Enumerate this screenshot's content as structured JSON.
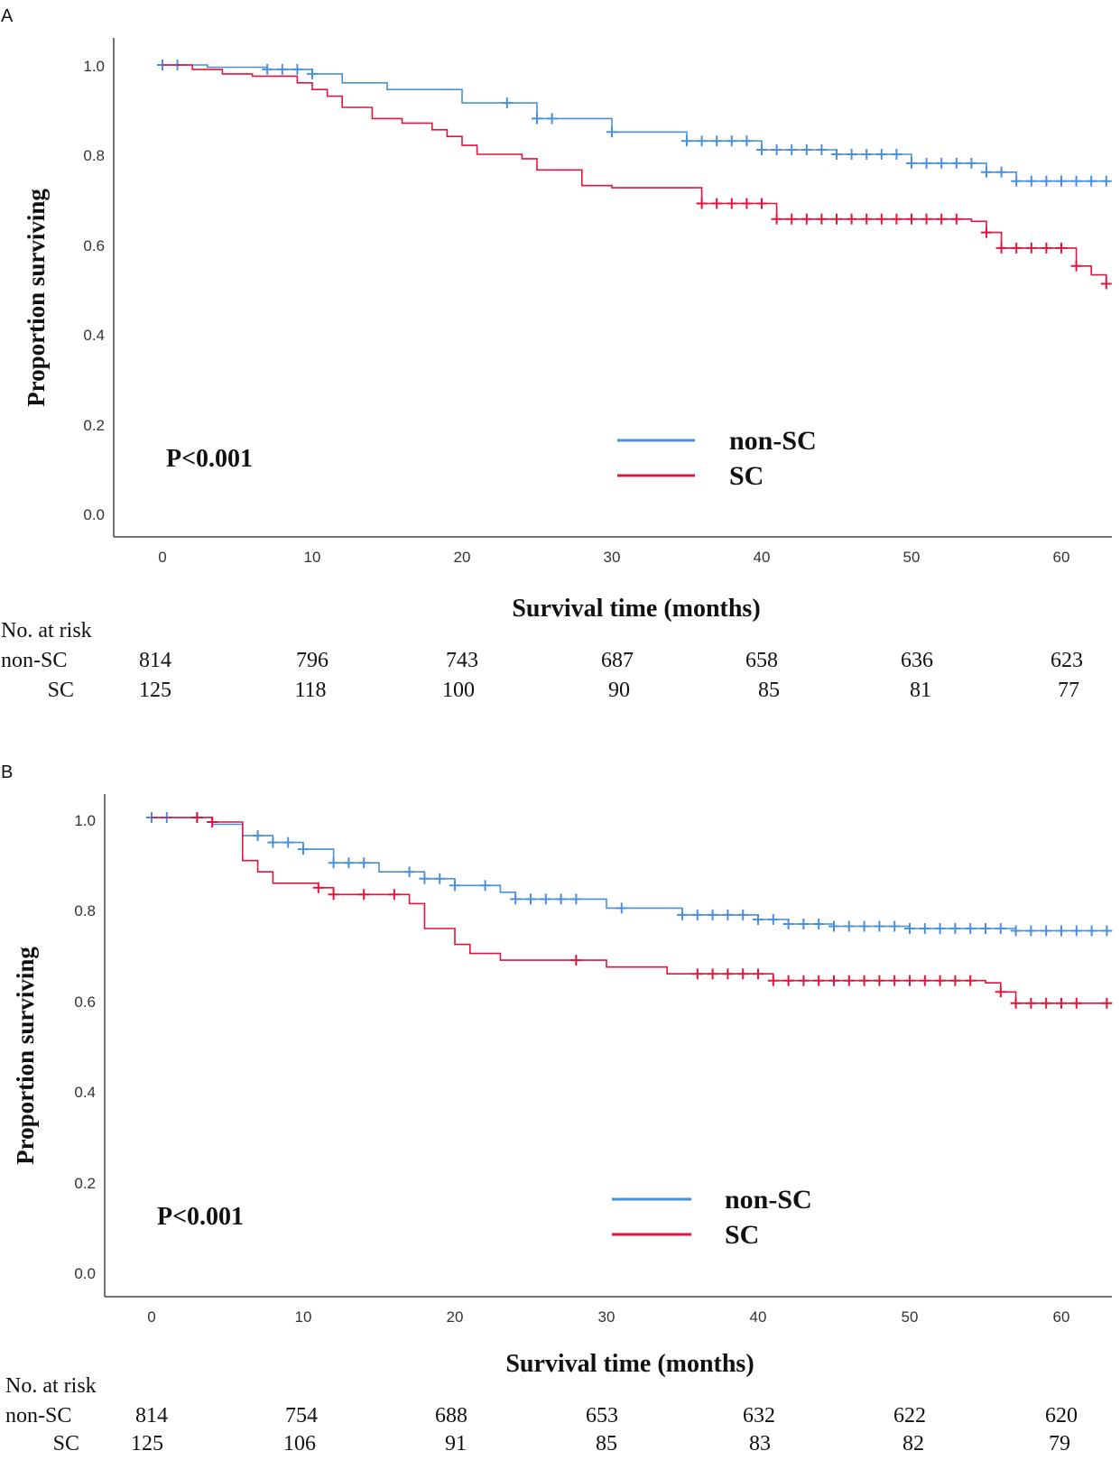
{
  "chart_data": [
    {
      "panel_label": "A",
      "type": "line",
      "ylabel": "Proportion surviving",
      "xlabel": "Survival time (months)",
      "xlim": [
        0,
        63
      ],
      "ylim": [
        0,
        1.0
      ],
      "x_ticks": [
        "0",
        "10",
        "20",
        "30",
        "40",
        "50",
        "60"
      ],
      "y_ticks": [
        "0.0",
        "0.2",
        "0.4",
        "0.6",
        "0.8",
        "1.0"
      ],
      "annotation": "P<0.001",
      "legend": [
        "non-SC",
        "SC"
      ],
      "colors": {
        "non-SC": "#4a8fdc",
        "SC": "#e0143c"
      },
      "series": [
        {
          "name": "non-SC",
          "color": "#4a8fdc",
          "x": [
            0,
            3,
            7,
            10,
            12,
            15,
            20,
            25,
            30,
            35,
            40,
            45,
            50,
            55,
            57,
            63
          ],
          "y": [
            1.0,
            0.995,
            0.99,
            0.98,
            0.96,
            0.945,
            0.915,
            0.88,
            0.85,
            0.83,
            0.81,
            0.8,
            0.78,
            0.76,
            0.74,
            0.74
          ],
          "censored_x": [
            0,
            1,
            7,
            8,
            9,
            10,
            23,
            25,
            26,
            30,
            35,
            36,
            37,
            38,
            39,
            40,
            41,
            42,
            43,
            44,
            45,
            46,
            47,
            48,
            49,
            50,
            51,
            52,
            53,
            54,
            55,
            56,
            57,
            58,
            59,
            60,
            61,
            62,
            63
          ]
        },
        {
          "name": "SC",
          "color": "#e0143c",
          "x": [
            0,
            2,
            4,
            6,
            9,
            10,
            11,
            12,
            14,
            16,
            18,
            19,
            20,
            21,
            24,
            25,
            28,
            30,
            35,
            36,
            41,
            54,
            55,
            56,
            61,
            62,
            63
          ],
          "y": [
            1.0,
            0.99,
            0.98,
            0.975,
            0.96,
            0.945,
            0.93,
            0.905,
            0.88,
            0.87,
            0.855,
            0.84,
            0.82,
            0.8,
            0.79,
            0.765,
            0.73,
            0.725,
            0.725,
            0.69,
            0.655,
            0.65,
            0.625,
            0.59,
            0.55,
            0.53,
            0.51
          ],
          "censored_x": [
            36,
            37,
            38,
            39,
            40,
            41,
            42,
            43,
            44,
            45,
            46,
            47,
            48,
            49,
            50,
            51,
            52,
            53,
            55,
            56,
            57,
            58,
            59,
            60,
            61,
            63
          ]
        }
      ],
      "risk_table": {
        "title": "No. at risk",
        "rows": [
          {
            "label": "non-SC",
            "values": [
              "814",
              "796",
              "743",
              "687",
              "658",
              "636",
              "623"
            ]
          },
          {
            "label": "SC",
            "values": [
              "125",
              "118",
              "100",
              "90",
              "85",
              "81",
              "77"
            ]
          }
        ]
      }
    },
    {
      "panel_label": "B",
      "type": "line",
      "ylabel": "Proportion surviving",
      "xlabel": "Survival time (months)",
      "xlim": [
        0,
        63
      ],
      "ylim": [
        0,
        1.0
      ],
      "x_ticks": [
        "0",
        "10",
        "20",
        "30",
        "40",
        "50",
        "60"
      ],
      "y_ticks": [
        "0.0",
        "0.2",
        "0.4",
        "0.6",
        "0.8",
        "1.0"
      ],
      "annotation": "P<0.001",
      "legend": [
        "non-SC",
        "SC"
      ],
      "colors": {
        "non-SC": "#4a8fdc",
        "SC": "#e0143c"
      },
      "series": [
        {
          "name": "non-SC",
          "color": "#4a8fdc",
          "x": [
            0,
            4,
            6,
            8,
            10,
            12,
            15,
            18,
            20,
            23,
            24,
            30,
            35,
            40,
            42,
            45,
            50,
            55,
            57,
            63
          ],
          "y": [
            1.0,
            0.985,
            0.96,
            0.945,
            0.93,
            0.9,
            0.88,
            0.865,
            0.85,
            0.835,
            0.82,
            0.8,
            0.785,
            0.775,
            0.765,
            0.76,
            0.755,
            0.755,
            0.75,
            0.75
          ],
          "censored_x": [
            0,
            1,
            3,
            7,
            8,
            9,
            10,
            12,
            13,
            14,
            17,
            18,
            19,
            20,
            22,
            24,
            25,
            26,
            27,
            28,
            31,
            35,
            36,
            37,
            38,
            39,
            40,
            41,
            42,
            43,
            44,
            45,
            46,
            47,
            48,
            49,
            50,
            51,
            52,
            53,
            54,
            55,
            56,
            57,
            58,
            59,
            60,
            61,
            62,
            63
          ]
        },
        {
          "name": "SC",
          "color": "#e0143c",
          "x": [
            0,
            4,
            6,
            7,
            8,
            11,
            12,
            17,
            18,
            20,
            21,
            23,
            28,
            30,
            34,
            36,
            41,
            55,
            56,
            57,
            63
          ],
          "y": [
            1.0,
            0.99,
            0.905,
            0.88,
            0.855,
            0.845,
            0.83,
            0.81,
            0.755,
            0.72,
            0.7,
            0.685,
            0.685,
            0.67,
            0.655,
            0.655,
            0.64,
            0.635,
            0.615,
            0.59,
            0.59
          ],
          "censored_x": [
            3,
            4,
            11,
            12,
            14,
            16,
            28,
            36,
            37,
            38,
            39,
            40,
            41,
            42,
            43,
            44,
            45,
            46,
            47,
            48,
            49,
            50,
            51,
            52,
            53,
            54,
            56,
            57,
            58,
            59,
            60,
            61,
            63
          ]
        }
      ],
      "risk_table": {
        "title": "No. at risk",
        "rows": [
          {
            "label": "non-SC",
            "values": [
              "814",
              "754",
              "688",
              "653",
              "632",
              "622",
              "620"
            ]
          },
          {
            "label": "SC",
            "values": [
              "125",
              "106",
              "91",
              "85",
              "83",
              "82",
              "79"
            ]
          }
        ]
      }
    }
  ]
}
